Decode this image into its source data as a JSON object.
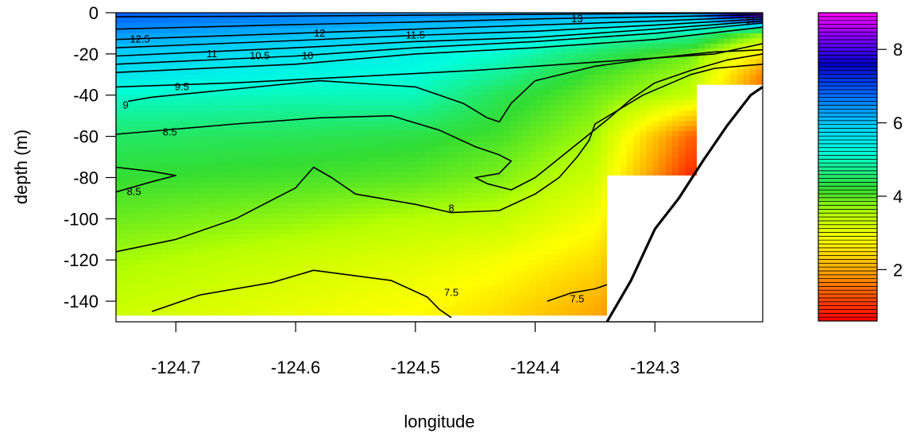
{
  "chart_data": {
    "type": "heatmap",
    "xlabel": "longitude",
    "ylabel": "depth (m)",
    "xlim": [
      -124.75,
      -124.21
    ],
    "ylim": [
      -150,
      0
    ],
    "x_ticks": [
      -124.7,
      -124.6,
      -124.5,
      -124.4,
      -124.3
    ],
    "y_ticks": [
      0,
      -20,
      -40,
      -60,
      -80,
      -100,
      -120,
      -140
    ],
    "colorbar": {
      "range": [
        0.6,
        9.0
      ],
      "ticks": [
        2,
        4,
        6,
        8
      ],
      "stops": [
        {
          "v": 0.6,
          "color": "#ff0000"
        },
        {
          "v": 2.0,
          "color": "#ffaa00"
        },
        {
          "v": 2.8,
          "color": "#ffff00"
        },
        {
          "v": 3.5,
          "color": "#b8ff00"
        },
        {
          "v": 4.2,
          "color": "#33dd33"
        },
        {
          "v": 5.2,
          "color": "#00ffdd"
        },
        {
          "v": 6.0,
          "color": "#00c8ff"
        },
        {
          "v": 6.8,
          "color": "#0066ff"
        },
        {
          "v": 7.6,
          "color": "#0000cc"
        },
        {
          "v": 8.3,
          "color": "#8000ff"
        },
        {
          "v": 9.0,
          "color": "#ff00ff"
        }
      ]
    },
    "field_profiles": [
      {
        "lon": -124.75,
        "depths": [
          0,
          -10,
          -20,
          -30,
          -40,
          -60,
          -80,
          -100,
          -120,
          -145
        ],
        "values": [
          6.9,
          6.4,
          5.9,
          5.6,
          5.1,
          4.5,
          4.2,
          3.9,
          3.6,
          3.3
        ]
      },
      {
        "lon": -124.6,
        "depths": [
          0,
          -10,
          -20,
          -30,
          -40,
          -60,
          -80,
          -100,
          -120,
          -145
        ],
        "values": [
          6.7,
          6.1,
          5.6,
          5.3,
          5.0,
          4.4,
          4.1,
          3.7,
          3.3,
          3.0
        ]
      },
      {
        "lon": -124.5,
        "depths": [
          0,
          -10,
          -20,
          -30,
          -40,
          -60,
          -80,
          -100,
          -120,
          -145
        ],
        "values": [
          6.5,
          5.9,
          5.4,
          5.2,
          5.0,
          4.3,
          4.0,
          3.5,
          3.1,
          2.8
        ]
      },
      {
        "lon": -124.43,
        "depths": [
          0,
          -10,
          -20,
          -30,
          -40,
          -60,
          -80,
          -100,
          -120,
          -145
        ],
        "values": [
          6.4,
          5.8,
          5.1,
          4.8,
          4.4,
          4.1,
          3.8,
          3.4,
          2.9,
          2.5
        ]
      },
      {
        "lon": -124.35,
        "depths": [
          0,
          -10,
          -20,
          -30,
          -40,
          -60,
          -80,
          -100,
          -120,
          -145
        ],
        "values": [
          6.3,
          5.2,
          4.5,
          4.1,
          3.9,
          3.6,
          3.3,
          2.9,
          2.5,
          2.0
        ]
      },
      {
        "lon": -124.27,
        "depths": [
          0,
          -10,
          -20,
          -30,
          -40,
          -60,
          -80,
          -100,
          -120,
          -145
        ],
        "values": [
          6.2,
          4.9,
          3.9,
          3.6,
          3.4,
          1.4,
          0.9,
          0.9,
          0.9,
          0.9
        ]
      },
      {
        "lon": -124.21,
        "depths": [
          0,
          -10,
          -20,
          -30,
          -40,
          -60,
          -80,
          -100,
          -120,
          -145
        ],
        "values": [
          9.0,
          3.8,
          2.6,
          1.7,
          1.4,
          1.4,
          1.4,
          1.4,
          1.4,
          1.4
        ]
      }
    ],
    "data_mask": [
      {
        "lon_min": -124.34,
        "lon_max": -124.21,
        "depth_top": -79,
        "depth_bottom": -150
      },
      {
        "lon_min": -124.265,
        "lon_max": -124.21,
        "depth_top": -35,
        "depth_bottom": -79
      },
      {
        "lon_min": -124.75,
        "lon_max": -124.34,
        "depth_top": -147,
        "depth_bottom": -150
      }
    ],
    "bottom_line": {
      "lon": [
        -124.34,
        -124.32,
        -124.3,
        -124.28,
        -124.26,
        -124.24,
        -124.22,
        -124.21
      ],
      "depth": [
        -150,
        -130,
        -105,
        -90,
        -72,
        -55,
        -40,
        -36
      ]
    },
    "contours": [
      {
        "level": "13",
        "lon": [
          -124.75,
          -124.62,
          -124.5,
          -124.4,
          -124.3,
          -124.21
        ],
        "depth": [
          -2,
          -1.7,
          -1.2,
          -0.8,
          -0.4,
          -0.2
        ]
      },
      {
        "level": "12.5",
        "lon": [
          -124.75,
          -124.62,
          -124.5,
          -124.4,
          -124.3,
          -124.21
        ],
        "depth": [
          -8,
          -6,
          -4.5,
          -3,
          -2,
          -1
        ]
      },
      {
        "level": "12",
        "lon": [
          -124.75,
          -124.6,
          -124.5,
          -124.4,
          -124.3,
          -124.21
        ],
        "depth": [
          -13,
          -10,
          -8,
          -6,
          -4,
          -2
        ]
      },
      {
        "level": "11.5",
        "lon": [
          -124.75,
          -124.6,
          -124.5,
          -124.4,
          -124.3,
          -124.21
        ],
        "depth": [
          -17,
          -13.5,
          -11,
          -9,
          -6,
          -3
        ]
      },
      {
        "level": "11",
        "lon": [
          -124.75,
          -124.6,
          -124.5,
          -124.4,
          -124.3,
          -124.21
        ],
        "depth": [
          -21,
          -17,
          -14,
          -12,
          -8,
          -4
        ]
      },
      {
        "level": "10.5",
        "lon": [
          -124.75,
          -124.6,
          -124.5,
          -124.4,
          -124.3,
          -124.21
        ],
        "depth": [
          -25,
          -21,
          -17,
          -14,
          -10,
          -5
        ]
      },
      {
        "level": "10",
        "lon": [
          -124.75,
          -124.6,
          -124.5,
          -124.4,
          -124.3,
          -124.21
        ],
        "depth": [
          -29,
          -25,
          -20,
          -17,
          -13,
          -7
        ]
      },
      {
        "level": "9.5",
        "lon": [
          -124.75,
          -124.65,
          -124.55,
          -124.45,
          -124.35,
          -124.25,
          -124.21
        ],
        "depth": [
          -36,
          -34,
          -31,
          -28,
          -24,
          -20,
          -15
        ]
      },
      {
        "level": "9",
        "lon": [
          -124.74,
          -124.72,
          -124.65,
          -124.58,
          -124.5,
          -124.46,
          -124.44,
          -124.43,
          -124.42,
          -124.4,
          -124.35,
          -124.3,
          -124.25,
          -124.21
        ],
        "depth": [
          -43,
          -41,
          -37,
          -33,
          -36,
          -44,
          -51,
          -53,
          -44,
          -33,
          -26,
          -22,
          -19,
          -18
        ]
      },
      {
        "level": "8.5",
        "lon": [
          -124.75,
          -124.65,
          -124.58,
          -124.52,
          -124.48,
          -124.45,
          -124.43,
          -124.42,
          -124.43,
          -124.45,
          -124.44,
          -124.42,
          -124.4,
          -124.37,
          -124.34,
          -124.32,
          -124.3,
          -124.27,
          -124.24,
          -124.21
        ],
        "depth": [
          -59,
          -54,
          -51,
          -50,
          -57,
          -65,
          -69,
          -72,
          -78,
          -80,
          -83,
          -86,
          -80,
          -66,
          -52,
          -42,
          -34,
          -28,
          -23,
          -20
        ]
      },
      {
        "level": "8.5",
        "lon": [
          -124.75,
          -124.72,
          -124.7,
          -124.72,
          -124.75
        ],
        "depth": [
          -75,
          -77,
          -79,
          -82,
          -87
        ]
      },
      {
        "level": "8",
        "lon": [
          -124.75,
          -124.7,
          -124.65,
          -124.6,
          -124.585,
          -124.57,
          -124.55,
          -124.5,
          -124.47,
          -124.43,
          -124.4,
          -124.38,
          -124.365,
          -124.355,
          -124.35,
          -124.33,
          -124.31,
          -124.29,
          -124.27,
          -124.25,
          -124.21
        ],
        "depth": [
          -116,
          -110,
          -100,
          -85,
          -75,
          -80,
          -88,
          -93,
          -97,
          -96,
          -88,
          -80,
          -70,
          -62,
          -54,
          -47,
          -40,
          -35,
          -30,
          -27,
          -25
        ]
      },
      {
        "level": "7.5",
        "lon": [
          -124.72,
          -124.68,
          -124.62,
          -124.585,
          -124.52,
          -124.49,
          -124.48,
          -124.47
        ],
        "depth": [
          -145,
          -137,
          -131,
          -125,
          -130,
          -138,
          -144,
          -148
        ]
      },
      {
        "level": "7.5",
        "lon": [
          -124.39,
          -124.37,
          -124.35,
          -124.34
        ],
        "depth": [
          -140,
          -136,
          -134,
          -132
        ]
      }
    ],
    "contour_labels": [
      {
        "text": "13",
        "lon": -124.365,
        "depth": -3
      },
      {
        "text": "12.5",
        "lon": -124.73,
        "depth": -13
      },
      {
        "text": "12",
        "lon": -124.58,
        "depth": -10
      },
      {
        "text": "11.5",
        "lon": -124.5,
        "depth": -11
      },
      {
        "text": "11",
        "lon": -124.22,
        "depth": -4
      },
      {
        "text": "11",
        "lon": -124.67,
        "depth": -20
      },
      {
        "text": "10.5",
        "lon": -124.63,
        "depth": -21
      },
      {
        "text": "10",
        "lon": -124.59,
        "depth": -21
      },
      {
        "text": "9.5",
        "lon": -124.695,
        "depth": -36
      },
      {
        "text": "9",
        "lon": -124.742,
        "depth": -45
      },
      {
        "text": "8.5",
        "lon": -124.705,
        "depth": -58
      },
      {
        "text": "8.5",
        "lon": -124.735,
        "depth": -87
      },
      {
        "text": "8",
        "lon": -124.47,
        "depth": -95
      },
      {
        "text": "7.5",
        "lon": -124.47,
        "depth": -136
      },
      {
        "text": "7.5",
        "lon": -124.365,
        "depth": -139
      }
    ]
  }
}
